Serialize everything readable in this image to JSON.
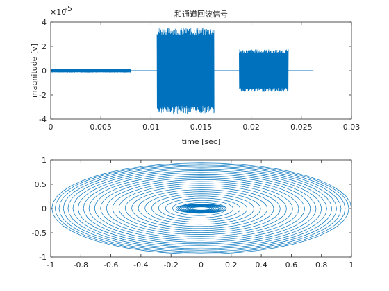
{
  "chart_data": [
    {
      "type": "line",
      "title": "和通道回波信号",
      "xlabel": "time [sec]",
      "ylabel": "magnitude [v]",
      "xlim": [
        0,
        0.03
      ],
      "ylim": [
        -4,
        4
      ],
      "y_exponent_label": "×10",
      "y_exponent": "-5",
      "xticks": [
        "0",
        "0.005",
        "0.01",
        "0.015",
        "0.02",
        "0.025",
        "0.03"
      ],
      "yticks": [
        "-4",
        "-2",
        "0",
        "2",
        "4"
      ],
      "grid": false,
      "color": "#0072BD",
      "segments": [
        {
          "start": 0.0,
          "end": 0.008,
          "amplitude": 0.15
        },
        {
          "start": 0.0106,
          "end": 0.0163,
          "amplitude": 3.55
        },
        {
          "start": 0.0188,
          "end": 0.0237,
          "amplitude": 1.75
        }
      ],
      "baseline_end": 0.0262
    },
    {
      "type": "line",
      "title": "",
      "xlabel": "",
      "ylabel": "",
      "xlim": [
        -1,
        1
      ],
      "ylim": [
        -1,
        1
      ],
      "xticks": [
        "-1",
        "-0.8",
        "-0.6",
        "-0.4",
        "-0.2",
        "0",
        "0.2",
        "0.4",
        "0.6",
        "0.8",
        "1"
      ],
      "yticks": [
        "-1",
        "-0.5",
        "0",
        "0.5",
        "1"
      ],
      "grid": false,
      "color": "#0072BD",
      "shape": "spiral ellipses",
      "outer_rx": 1.0,
      "outer_ry": 0.95,
      "inner_rx": 0.07,
      "inner_ry": 0.04,
      "rings": 24
    }
  ]
}
